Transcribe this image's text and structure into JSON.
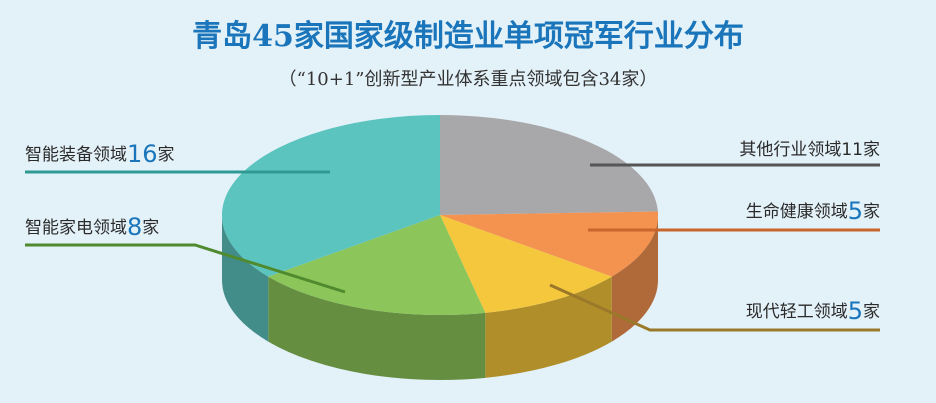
{
  "chart_data": {
    "type": "pie3d",
    "title": "青岛45家国家级制造业单项冠军行业分布",
    "subtitle": "（“10+1”创新型产业体系重点领域包含34家）",
    "unit": "家",
    "categories": [
      "其他行业领域",
      "生命健康领域",
      "现代轻工领域",
      "智能家电领域",
      "智能装备领域"
    ],
    "values": [
      11,
      5,
      5,
      8,
      16
    ],
    "colors": [
      "#a8a8aa",
      "#f4924f",
      "#f5c73c",
      "#8cc55a",
      "#5cc4be"
    ]
  }
}
